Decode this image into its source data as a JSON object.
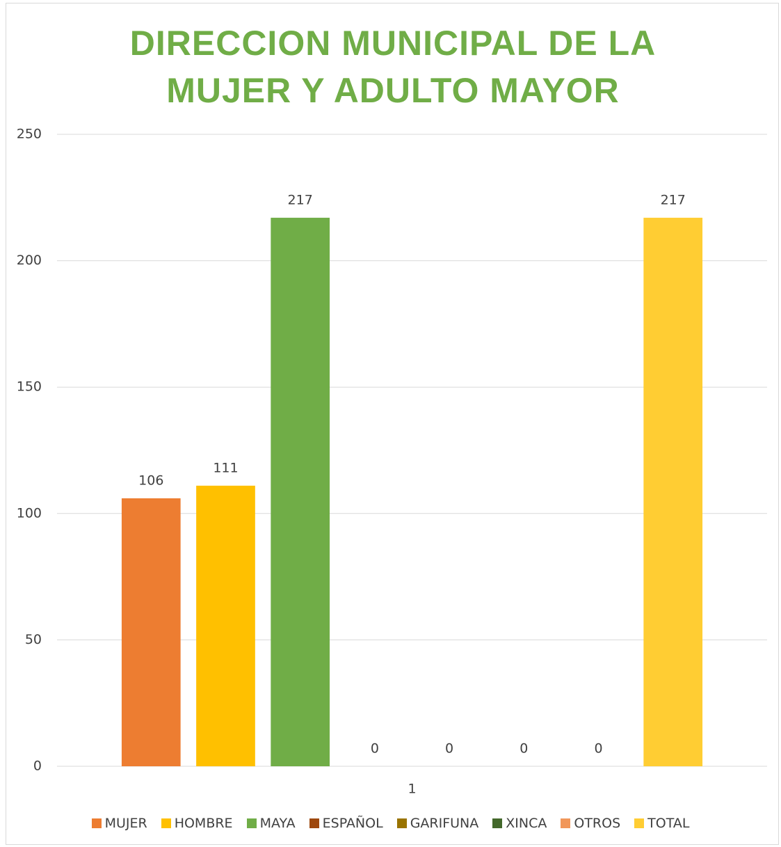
{
  "chart_data": {
    "type": "bar",
    "title": "DIRECCION MUNICIPAL DE LA MUJER Y ADULTO MAYOR",
    "categories": [
      "1"
    ],
    "series": [
      {
        "name": "MUJER",
        "color": "#ed7d31",
        "values": [
          106
        ]
      },
      {
        "name": "HOMBRE",
        "color": "#ffc000",
        "values": [
          111
        ]
      },
      {
        "name": "MAYA",
        "color": "#70ad47",
        "values": [
          217
        ]
      },
      {
        "name": "ESPAÑOL",
        "color": "#9e480e",
        "values": [
          0
        ]
      },
      {
        "name": "GARIFUNA",
        "color": "#997300",
        "values": [
          0
        ]
      },
      {
        "name": "XINCA",
        "color": "#43682b",
        "values": [
          0
        ]
      },
      {
        "name": "OTROS",
        "color": "#f1975a",
        "values": [
          0
        ]
      },
      {
        "name": "TOTAL",
        "color": "#ffcd33",
        "values": [
          217
        ]
      }
    ],
    "ylim": [
      0,
      250
    ],
    "yticks": [
      0,
      50,
      100,
      150,
      200,
      250
    ],
    "grid": true,
    "legend": "bottom"
  }
}
